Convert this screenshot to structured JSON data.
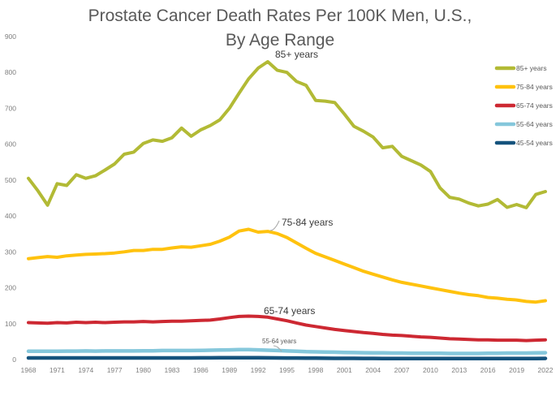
{
  "title": {
    "line1": "Prostate Cancer Death Rates Per 100K Men, U.S.,",
    "line2": "By Age Range"
  },
  "chart_data": {
    "type": "line",
    "title": "Prostate Cancer Death Rates Per 100K Men, U.S., By Age Range",
    "xlabel": "",
    "ylabel": "",
    "grid": false,
    "legend_position": "right",
    "ylim": [
      0,
      900
    ],
    "y_ticks": [
      0,
      100,
      200,
      300,
      400,
      500,
      600,
      700,
      800,
      900
    ],
    "x_ticks": [
      1968,
      1971,
      1974,
      1977,
      1980,
      1983,
      1986,
      1989,
      1992,
      1995,
      1998,
      2001,
      2004,
      2007,
      2010,
      2013,
      2016,
      2019,
      2022
    ],
    "x": [
      1968,
      1969,
      1970,
      1971,
      1972,
      1973,
      1974,
      1975,
      1976,
      1977,
      1978,
      1979,
      1980,
      1981,
      1982,
      1983,
      1984,
      1985,
      1986,
      1987,
      1988,
      1989,
      1990,
      1991,
      1992,
      1993,
      1994,
      1995,
      1996,
      1997,
      1998,
      1999,
      2000,
      2001,
      2002,
      2003,
      2004,
      2005,
      2006,
      2007,
      2008,
      2009,
      2010,
      2011,
      2012,
      2013,
      2014,
      2015,
      2016,
      2017,
      2018,
      2019,
      2020,
      2021,
      2022
    ],
    "series": [
      {
        "name": "85+ years",
        "color": "#b2ba35",
        "stroke_width": 4,
        "values": [
          505,
          470,
          430,
          490,
          485,
          515,
          505,
          512,
          528,
          545,
          572,
          578,
          602,
          612,
          608,
          618,
          645,
          622,
          640,
          652,
          668,
          700,
          742,
          782,
          812,
          830,
          806,
          800,
          775,
          764,
          722,
          720,
          716,
          684,
          650,
          636,
          620,
          590,
          594,
          566,
          554,
          542,
          524,
          478,
          452,
          447,
          436,
          428,
          433,
          446,
          424,
          432,
          423,
          460,
          468
        ]
      },
      {
        "name": "75-84 years",
        "color": "#ffc20e",
        "stroke_width": 4,
        "values": [
          281,
          284,
          287,
          285,
          289,
          291,
          293,
          294,
          295,
          297,
          300,
          304,
          304,
          307,
          307,
          311,
          314,
          313,
          317,
          321,
          330,
          341,
          358,
          363,
          355,
          357,
          351,
          340,
          325,
          310,
          296,
          286,
          276,
          266,
          256,
          246,
          238,
          230,
          222,
          215,
          210,
          205,
          200,
          195,
          190,
          185,
          181,
          178,
          173,
          171,
          168,
          166,
          162,
          160,
          164
        ]
      },
      {
        "name": "65-74 years",
        "color": "#cd2832",
        "stroke_width": 4,
        "values": [
          103,
          102,
          101,
          103,
          102,
          104,
          103,
          104,
          103,
          104,
          105,
          105,
          106,
          105,
          106,
          107,
          107,
          108,
          109,
          110,
          113,
          117,
          120,
          121,
          120,
          118,
          113,
          108,
          102,
          96,
          92,
          88,
          84,
          81,
          78,
          75,
          73,
          70,
          68,
          67,
          65,
          63,
          62,
          60,
          58,
          57,
          56,
          55,
          55,
          54,
          54,
          54,
          53,
          54,
          55
        ]
      },
      {
        "name": "55-64 years",
        "color": "#85c7db",
        "stroke_width": 4.5,
        "values": [
          23,
          23,
          23,
          23,
          23.5,
          23.5,
          24,
          23.5,
          24,
          24,
          24,
          24,
          24.5,
          24.5,
          25,
          25,
          25,
          25,
          25.5,
          26,
          26.5,
          27,
          27.5,
          27.5,
          27,
          26,
          25,
          24,
          23,
          22,
          21.5,
          21,
          20.5,
          20,
          19.5,
          19,
          18.5,
          18.5,
          18,
          18,
          17.5,
          17.5,
          17.5,
          17.5,
          17,
          17,
          17,
          17,
          17.5,
          17.5,
          18,
          18,
          18,
          18.5,
          19
        ]
      },
      {
        "name": "45-54 years",
        "color": "#15537d",
        "stroke_width": 4.5,
        "values": [
          4.5,
          4.5,
          4.5,
          4.5,
          4.5,
          4.5,
          4.5,
          4.5,
          4.5,
          4.5,
          4.5,
          4.5,
          4.5,
          4.5,
          4.5,
          4.5,
          4.5,
          4.5,
          4.7,
          4.8,
          5,
          5,
          5.2,
          5.2,
          5,
          4.8,
          4.6,
          4.4,
          4.2,
          4,
          3.8,
          3.6,
          3.5,
          3.4,
          3.3,
          3.2,
          3.1,
          3,
          3,
          3,
          3,
          2.9,
          2.9,
          2.9,
          2.8,
          2.8,
          2.8,
          2.8,
          2.9,
          2.9,
          3,
          3,
          3,
          3,
          3.1
        ]
      }
    ],
    "annotations": [
      {
        "text": "85+ years",
        "x": 339,
        "y": 71,
        "size": "big"
      },
      {
        "text": "75-84 years",
        "x": 347,
        "y": 278,
        "size": "big",
        "leader": [
          [
            333,
            284
          ],
          [
            344,
            272
          ]
        ]
      },
      {
        "text": "65-74 years",
        "x": 325,
        "y": 387,
        "size": "big"
      },
      {
        "text": "55-64 years",
        "x": 323,
        "y": 423,
        "size": "small",
        "leader": [
          [
            337,
            426
          ],
          [
            347,
            433
          ]
        ]
      }
    ],
    "legend": {
      "items": [
        "85+ years",
        "75-84 years",
        "65-74 years",
        "55-64 years",
        "45-54 years"
      ]
    }
  },
  "colors": {
    "title_text": "#595959",
    "axis_text": "#7f7f7f",
    "annotation_text": "#3b3b3b",
    "leader_line": "#a6a6a6",
    "background": "#ffffff"
  }
}
